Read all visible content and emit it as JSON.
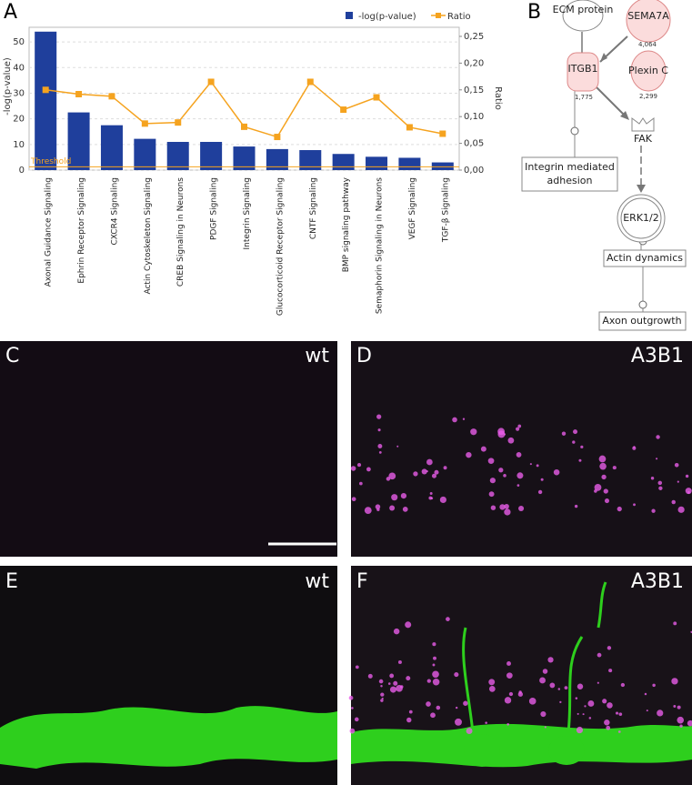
{
  "panel_labels": [
    "A",
    "B",
    "C",
    "D",
    "E",
    "F"
  ],
  "chart_data": {
    "type": "bar",
    "categories": [
      "Axonal Guidance Signaling",
      "Ephrin Receptor Signaling",
      "CXCR4 Signaling",
      "Actin Cytoskeleton Signaling",
      "CREB Signaling in Neurons",
      "PDGF Signaling",
      "Integrin Signaling",
      "Glucocorticoid Receptor Signaling",
      "CNTF Signaling",
      "BMP signaling pathway",
      "Semaphorin Signaling in Neurons",
      "VEGF Signaling",
      "TGF-β Signaling"
    ],
    "series": [
      {
        "name": "-log(p-value)",
        "color": "#1f3f9c",
        "values": [
          54,
          22.5,
          17.5,
          12.2,
          11,
          11,
          9.2,
          8.2,
          7.8,
          6.3,
          5.2,
          4.8,
          3
        ]
      },
      {
        "name": "Ratio",
        "type": "line",
        "axis": "y2",
        "color": "#f5a31f",
        "values": [
          0.15,
          0.142,
          0.138,
          0.087,
          0.089,
          0.165,
          0.081,
          0.062,
          0.165,
          0.113,
          0.136,
          0.08,
          0.068
        ]
      }
    ],
    "ylabel": "-log(p-value)",
    "y2label": "Ratio",
    "ylim": [
      0,
      55.7
    ],
    "yticks": [
      0,
      10,
      20,
      30,
      40,
      50
    ],
    "y2lim": [
      0,
      0.267
    ],
    "y2ticks": [
      {
        "value": 0,
        "label": "0,00"
      },
      {
        "value": 0.05,
        "label": "0,05"
      },
      {
        "value": 0.1,
        "label": "0,10"
      },
      {
        "value": 0.15,
        "label": "0,15"
      },
      {
        "value": 0.2,
        "label": "0,20"
      },
      {
        "value": 0.25,
        "label": "0,25"
      }
    ],
    "threshold": {
      "value": 1.3,
      "label": "Threshold"
    },
    "grid": true,
    "legend": "top-right"
  },
  "diagram": {
    "nodes": [
      {
        "label": "ECM protein"
      },
      {
        "label": "SEMA7A",
        "value": "4,064"
      },
      {
        "label": "ITGB1",
        "value": "1,775"
      },
      {
        "label": "Plexin C",
        "value": "2,299"
      },
      {
        "label": "FAK"
      },
      {
        "label": "ERK1/2"
      },
      {
        "label": "Integrin mediated adhesion"
      },
      {
        "label": "Actin dynamics"
      },
      {
        "label": "Axon outgrowth"
      }
    ]
  },
  "images": [
    {
      "label": "wt"
    },
    {
      "label": "A3B1"
    },
    {
      "label": "wt"
    },
    {
      "label": "A3B1"
    }
  ]
}
